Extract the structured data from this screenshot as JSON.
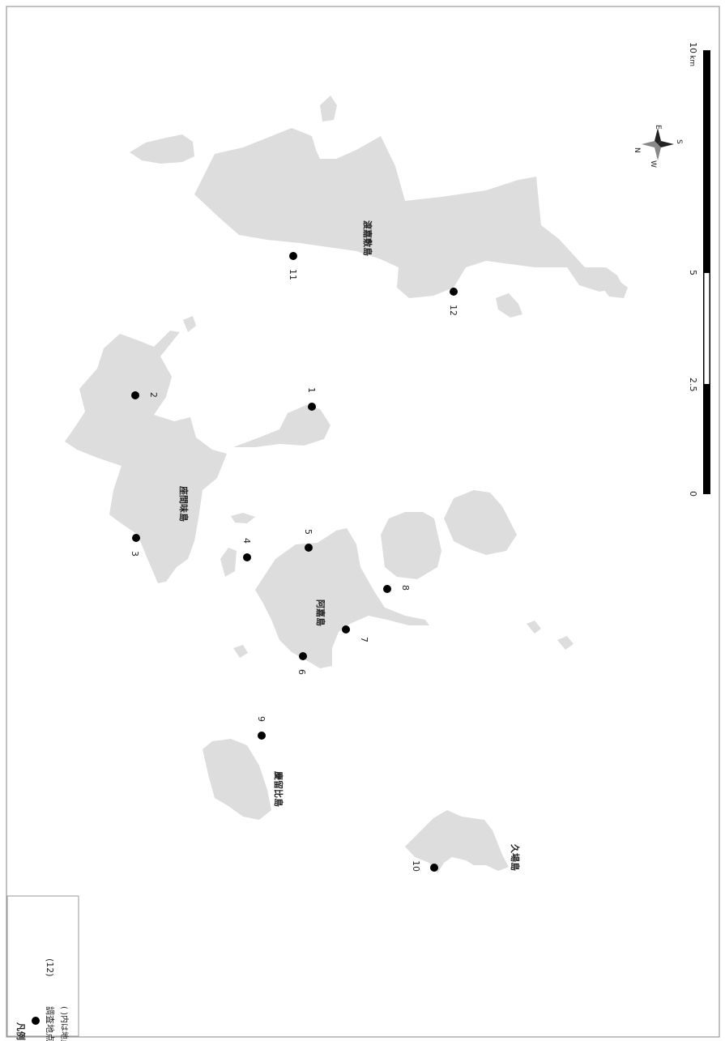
{
  "legend": {
    "title": "凡例",
    "item_label": "調査地点",
    "item_count": "(12)",
    "note": "( )内は地点数を示す"
  },
  "islands": [
    {
      "id": "tokashiki",
      "name": "渡嘉敷島"
    },
    {
      "id": "zamami",
      "name": "座間味島"
    },
    {
      "id": "aka",
      "name": "阿嘉島"
    },
    {
      "id": "gerumahijima",
      "name": "慶留比島"
    },
    {
      "id": "kuba",
      "name": "久場島"
    }
  ],
  "points": [
    "1",
    "2",
    "3",
    "4",
    "5",
    "6",
    "7",
    "8",
    "9",
    "10",
    "11",
    "12"
  ],
  "scale": {
    "ticks": [
      "0",
      "2.5",
      "5",
      "10"
    ],
    "unit": "km"
  },
  "compass": {
    "n": "N",
    "e": "E",
    "s": "S",
    "w": "W"
  }
}
